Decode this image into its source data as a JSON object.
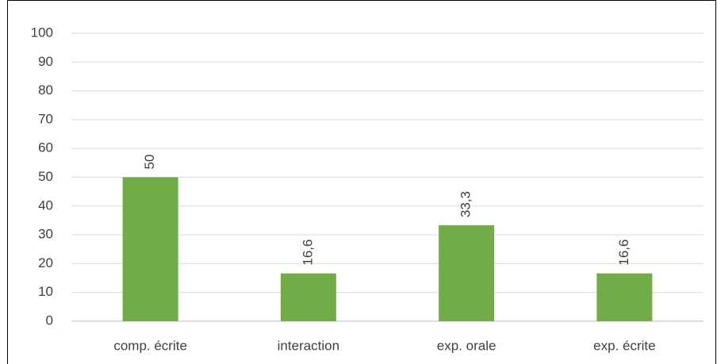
{
  "chart_data": {
    "type": "bar",
    "categories": [
      "comp. écrite",
      "interaction",
      "exp. orale",
      "exp. écrite"
    ],
    "values": [
      50,
      16.6,
      33.3,
      16.6
    ],
    "value_labels": [
      "50",
      "16,6",
      "33,3",
      "16,6"
    ],
    "color": "#70ad47",
    "ylim": [
      0,
      100
    ],
    "yticks": [
      0,
      10,
      20,
      30,
      40,
      50,
      60,
      70,
      80,
      90,
      100
    ],
    "grid": true
  }
}
